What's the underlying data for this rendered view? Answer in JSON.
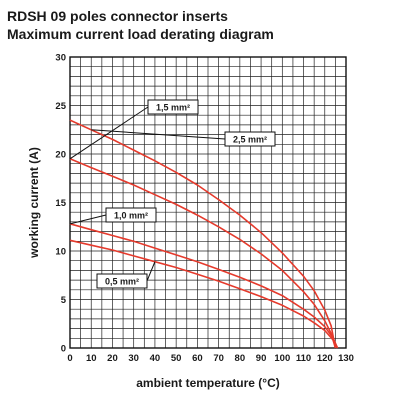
{
  "chart_data": {
    "type": "line",
    "title": "RDSH 09 poles connector inserts",
    "subtitle": "Maximum current load derating diagram",
    "xlabel": "ambient temperature (°C)",
    "ylabel": "working current (A)",
    "xlim": [
      0,
      130
    ],
    "ylim": [
      0,
      30
    ],
    "xticks": [
      0,
      10,
      20,
      30,
      40,
      50,
      60,
      70,
      80,
      90,
      100,
      110,
      120,
      130
    ],
    "yticks": [
      0,
      5,
      10,
      15,
      20,
      25,
      30
    ],
    "grid": true,
    "series": [
      {
        "name": "1,5 mm²",
        "x": [
          0,
          10,
          20,
          30,
          40,
          50,
          60,
          70,
          80,
          90,
          100,
          110,
          115,
          120,
          123,
          125
        ],
        "y": [
          19.5,
          18.6,
          17.7,
          16.8,
          15.8,
          14.8,
          13.7,
          12.5,
          11.2,
          9.7,
          8.0,
          5.8,
          4.5,
          2.8,
          1.5,
          0
        ]
      },
      {
        "name": "2,5 mm²",
        "x": [
          0,
          10,
          20,
          30,
          40,
          50,
          60,
          70,
          80,
          90,
          100,
          110,
          115,
          120,
          123,
          125
        ],
        "y": [
          23.5,
          22.5,
          21.5,
          20.4,
          19.3,
          18.1,
          16.8,
          15.3,
          13.7,
          11.9,
          9.8,
          7.4,
          5.9,
          3.9,
          2.3,
          0
        ]
      },
      {
        "name": "1,0 mm²",
        "x": [
          0,
          10,
          20,
          30,
          40,
          50,
          60,
          70,
          80,
          90,
          100,
          110,
          115,
          120,
          124,
          126
        ],
        "y": [
          12.8,
          12.2,
          11.6,
          11.0,
          10.3,
          9.6,
          8.9,
          8.1,
          7.3,
          6.4,
          5.4,
          4.0,
          3.2,
          2.2,
          1.0,
          0
        ]
      },
      {
        "name": "0,5 mm²",
        "x": [
          0,
          10,
          20,
          30,
          40,
          50,
          60,
          70,
          80,
          90,
          100,
          110,
          115,
          120,
          124,
          126
        ],
        "y": [
          11.1,
          10.6,
          10.1,
          9.5,
          8.9,
          8.3,
          7.6,
          6.9,
          6.1,
          5.3,
          4.4,
          3.3,
          2.6,
          1.8,
          0.8,
          0
        ]
      }
    ],
    "line_color": "#e53a2c"
  }
}
